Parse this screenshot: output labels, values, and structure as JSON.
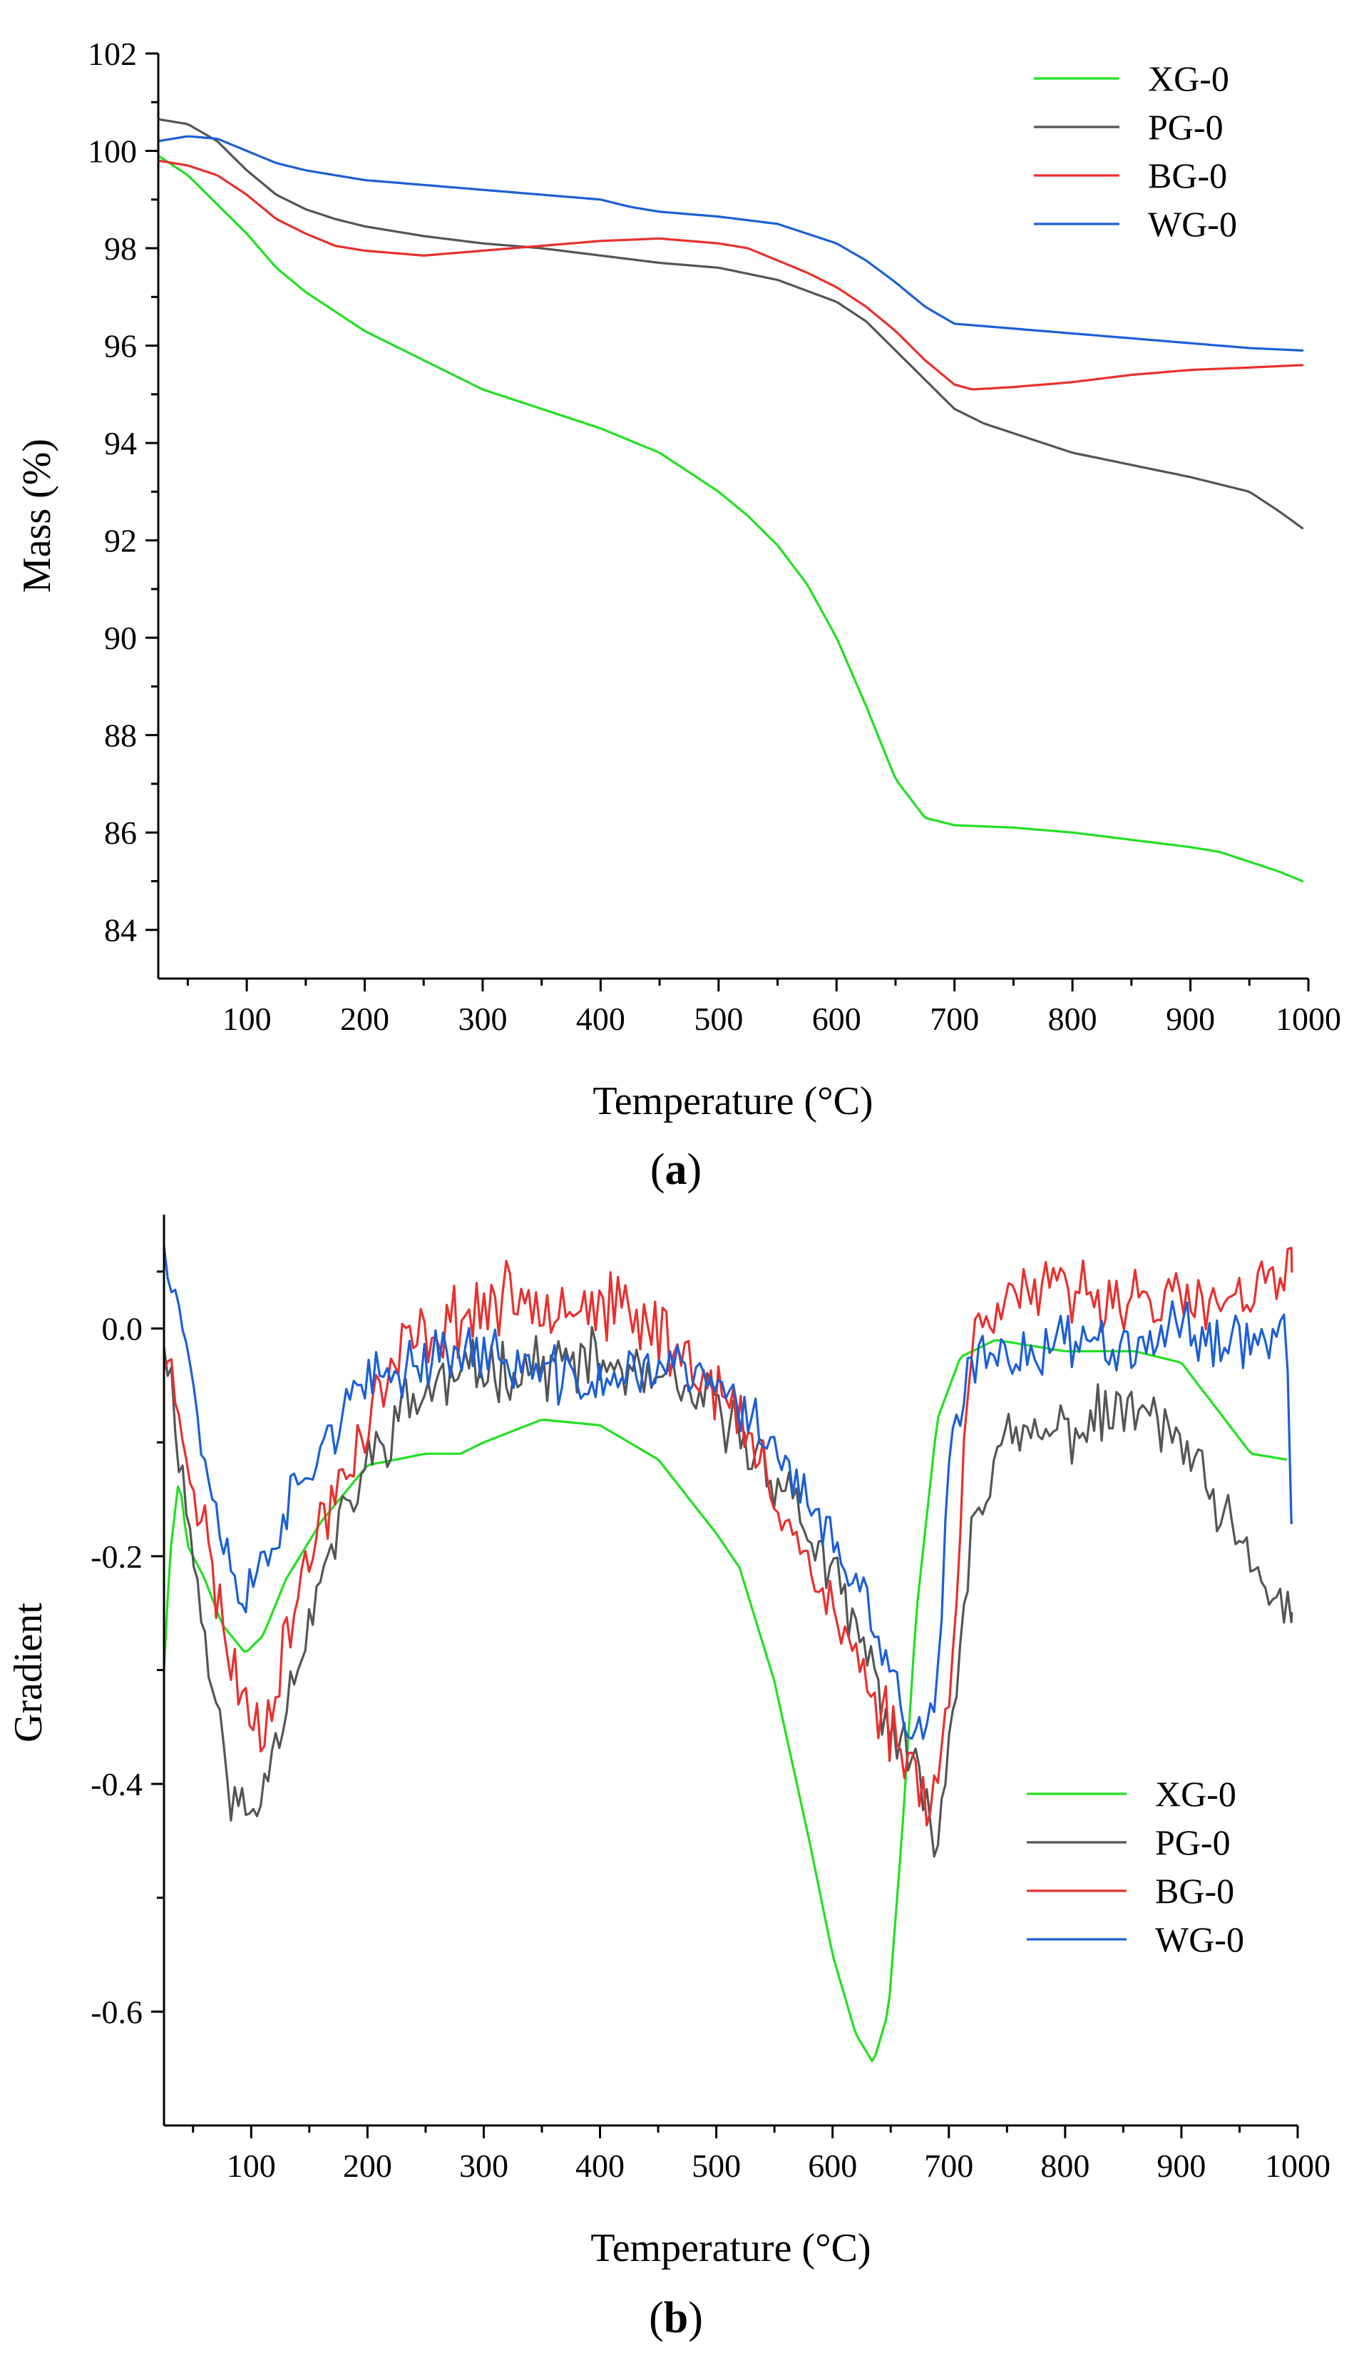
{
  "panels": {
    "a": {
      "label_open": "(",
      "label_letter": "a",
      "label_close": ")"
    },
    "b": {
      "label_open": "(",
      "label_letter": "b",
      "label_close": ")"
    }
  },
  "chart_data": [
    {
      "type": "line",
      "panel": "a",
      "title": "",
      "xlabel": "Temperature (°C)",
      "ylabel": "Mass (%)",
      "xlim": [
        25,
        1000
      ],
      "ylim": [
        83,
        102
      ],
      "xticks": [
        100,
        200,
        300,
        400,
        500,
        600,
        700,
        800,
        900,
        1000
      ],
      "yticks": [
        84,
        86,
        88,
        90,
        92,
        94,
        96,
        98,
        100,
        102
      ],
      "grid": false,
      "legend_position": "top-right",
      "series": [
        {
          "name": "XG-0",
          "color": "#22e022",
          "x": [
            25,
            50,
            75,
            100,
            125,
            150,
            175,
            200,
            250,
            300,
            350,
            400,
            450,
            500,
            525,
            550,
            575,
            600,
            625,
            650,
            675,
            700,
            750,
            800,
            850,
            900,
            925,
            950,
            975,
            995
          ],
          "y": [
            99.9,
            99.5,
            98.9,
            98.3,
            97.6,
            97.1,
            96.7,
            96.3,
            95.7,
            95.1,
            94.7,
            94.3,
            93.8,
            93.0,
            92.5,
            91.9,
            91.1,
            90.0,
            88.6,
            87.1,
            86.3,
            86.15,
            86.1,
            86.0,
            85.85,
            85.7,
            85.6,
            85.4,
            85.2,
            85.0
          ]
        },
        {
          "name": "PG-0",
          "color": "#555555",
          "x": [
            25,
            50,
            75,
            100,
            125,
            150,
            175,
            200,
            250,
            300,
            350,
            400,
            450,
            500,
            550,
            600,
            625,
            650,
            675,
            700,
            725,
            750,
            800,
            850,
            900,
            950,
            975,
            995
          ],
          "y": [
            100.65,
            100.55,
            100.2,
            99.6,
            99.1,
            98.8,
            98.6,
            98.45,
            98.25,
            98.1,
            98.0,
            97.85,
            97.7,
            97.6,
            97.35,
            96.9,
            96.5,
            95.9,
            95.3,
            94.7,
            94.4,
            94.2,
            93.8,
            93.55,
            93.3,
            93.0,
            92.6,
            92.25
          ]
        },
        {
          "name": "BG-0",
          "color": "#e8302e",
          "x": [
            25,
            50,
            75,
            100,
            125,
            150,
            175,
            200,
            250,
            300,
            350,
            400,
            450,
            500,
            525,
            550,
            575,
            600,
            625,
            650,
            675,
            700,
            715,
            750,
            800,
            850,
            900,
            950,
            995
          ],
          "y": [
            99.8,
            99.7,
            99.5,
            99.1,
            98.6,
            98.3,
            98.05,
            97.95,
            97.85,
            97.95,
            98.05,
            98.15,
            98.2,
            98.1,
            98.0,
            97.75,
            97.5,
            97.2,
            96.8,
            96.3,
            95.7,
            95.2,
            95.1,
            95.15,
            95.25,
            95.4,
            95.5,
            95.55,
            95.6
          ]
        },
        {
          "name": "WG-0",
          "color": "#1c5fd6",
          "x": [
            25,
            50,
            75,
            100,
            125,
            150,
            175,
            200,
            250,
            300,
            350,
            400,
            425,
            450,
            500,
            550,
            575,
            600,
            625,
            650,
            675,
            700,
            750,
            800,
            850,
            900,
            950,
            995
          ],
          "y": [
            100.2,
            100.3,
            100.25,
            100.0,
            99.75,
            99.6,
            99.5,
            99.4,
            99.3,
            99.2,
            99.1,
            99.0,
            98.85,
            98.75,
            98.65,
            98.5,
            98.3,
            98.1,
            97.75,
            97.3,
            96.8,
            96.45,
            96.35,
            96.25,
            96.15,
            96.05,
            95.95,
            95.9
          ]
        }
      ]
    },
    {
      "type": "line",
      "panel": "b",
      "title": "",
      "xlabel": "Temperature (°C)",
      "ylabel": "Gradient",
      "xlim": [
        25,
        1000
      ],
      "ylim": [
        -0.7,
        0.1
      ],
      "xticks": [
        100,
        200,
        300,
        400,
        500,
        600,
        700,
        800,
        900,
        1000
      ],
      "yticks": [
        0.0,
        -0.2,
        -0.4,
        -0.6
      ],
      "ytick_labels": [
        "0.0",
        "-0.2",
        "-0.4",
        "-0.6"
      ],
      "grid": false,
      "legend_position": "bottom-right",
      "series": [
        {
          "name": "XG-0",
          "color": "#22e022",
          "noise": 0,
          "x": [
            25,
            30,
            38,
            45,
            60,
            75,
            95,
            110,
            130,
            160,
            200,
            250,
            280,
            300,
            350,
            400,
            450,
            500,
            520,
            550,
            580,
            600,
            620,
            635,
            648,
            660,
            672,
            690,
            710,
            740,
            800,
            860,
            900,
            930,
            960,
            990
          ],
          "y": [
            -0.3,
            -0.2,
            -0.13,
            -0.19,
            -0.22,
            -0.26,
            -0.285,
            -0.27,
            -0.22,
            -0.17,
            -0.12,
            -0.11,
            -0.11,
            -0.1,
            -0.08,
            -0.085,
            -0.115,
            -0.18,
            -0.21,
            -0.31,
            -0.45,
            -0.55,
            -0.62,
            -0.645,
            -0.6,
            -0.44,
            -0.25,
            -0.08,
            -0.025,
            -0.01,
            -0.02,
            -0.02,
            -0.03,
            -0.07,
            -0.11,
            -0.115
          ]
        },
        {
          "name": "PG-0",
          "color": "#555555",
          "noise": 0.022,
          "seed": 11,
          "x": [
            25,
            35,
            50,
            65,
            80,
            95,
            105,
            120,
            140,
            170,
            200,
            230,
            260,
            300,
            400,
            500,
            560,
            600,
            630,
            650,
            665,
            680,
            690,
            705,
            720,
            750,
            800,
            860,
            900,
            930,
            960,
            995
          ],
          "y": [
            0.0,
            -0.08,
            -0.2,
            -0.3,
            -0.4,
            -0.43,
            -0.42,
            -0.36,
            -0.29,
            -0.19,
            -0.12,
            -0.07,
            -0.05,
            -0.035,
            -0.03,
            -0.07,
            -0.14,
            -0.22,
            -0.29,
            -0.35,
            -0.38,
            -0.42,
            -0.44,
            -0.33,
            -0.16,
            -0.1,
            -0.09,
            -0.07,
            -0.1,
            -0.16,
            -0.21,
            -0.25
          ]
        },
        {
          "name": "BG-0",
          "color": "#e8302e",
          "noise": 0.025,
          "seed": 23,
          "x": [
            25,
            40,
            60,
            80,
            95,
            110,
            130,
            160,
            200,
            230,
            260,
            300,
            350,
            400,
            450,
            500,
            550,
            600,
            630,
            650,
            665,
            680,
            690,
            705,
            715,
            725,
            760,
            800,
            860,
            900,
            950,
            995
          ],
          "y": [
            -0.02,
            -0.08,
            -0.18,
            -0.28,
            -0.33,
            -0.35,
            -0.27,
            -0.17,
            -0.08,
            -0.02,
            0.0,
            0.02,
            0.03,
            0.02,
            0.0,
            -0.05,
            -0.14,
            -0.25,
            -0.31,
            -0.35,
            -0.38,
            -0.4,
            -0.41,
            -0.26,
            -0.08,
            0.02,
            0.03,
            0.03,
            0.03,
            0.02,
            0.02,
            0.05
          ]
        },
        {
          "name": "WG-0",
          "color": "#1c5fd6",
          "noise": 0.02,
          "seed": 37,
          "x": [
            25,
            35,
            50,
            65,
            80,
            95,
            110,
            130,
            160,
            190,
            220,
            260,
            300,
            350,
            400,
            450,
            500,
            550,
            600,
            630,
            650,
            665,
            680,
            692,
            700,
            720,
            760,
            800,
            850,
            900,
            950,
            990,
            995
          ],
          "y": [
            0.08,
            0.04,
            -0.05,
            -0.14,
            -0.2,
            -0.24,
            -0.2,
            -0.16,
            -0.1,
            -0.06,
            -0.04,
            -0.02,
            -0.02,
            -0.04,
            -0.05,
            -0.03,
            -0.05,
            -0.1,
            -0.19,
            -0.25,
            -0.3,
            -0.35,
            -0.36,
            -0.3,
            -0.12,
            -0.03,
            -0.02,
            -0.01,
            -0.01,
            0.0,
            -0.01,
            0.0,
            -0.17
          ]
        }
      ]
    }
  ]
}
